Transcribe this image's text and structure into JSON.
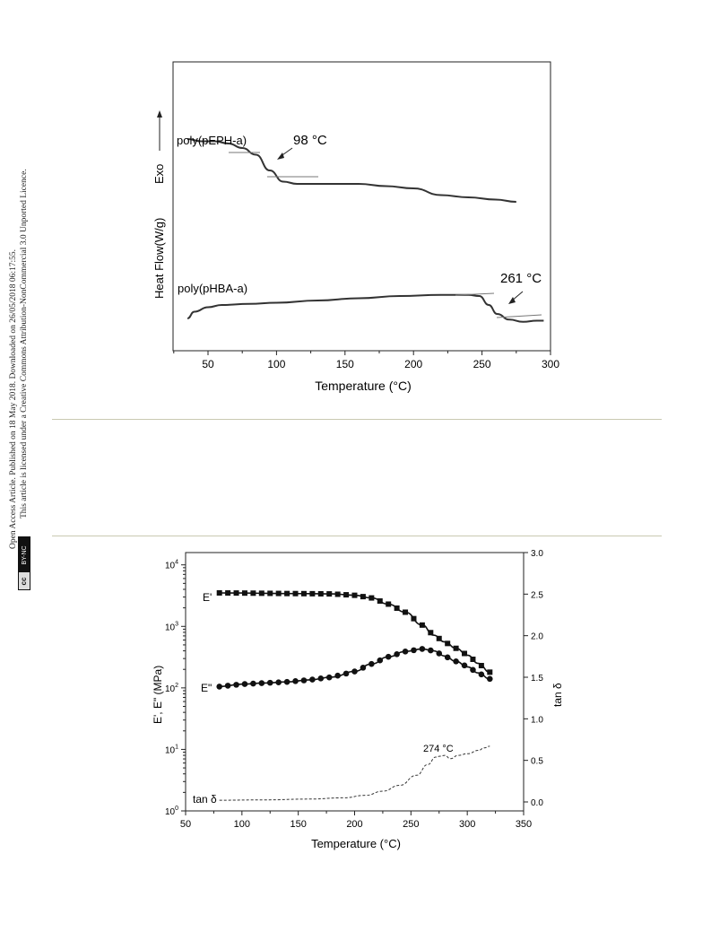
{
  "sidebar": {
    "line1": "Open Access Article. Published on 18 May 2018. Downloaded on 26/05/2018 06:17:55.",
    "line2": "This article is licensed under a Creative Commons Attribution-NonCommercial 3.0 Unported Licence.",
    "badge_cc": "cc",
    "badge_text": "BY-NC"
  },
  "figure_top": {
    "xlabel": "Temperature (°C)",
    "ylabel": "Heat Flow(W/g)",
    "exo_label": "Exo",
    "curve1_label": "poly(pEPH-a)",
    "curve2_label": "poly(pHBA-a)",
    "annotation1": "98 °C",
    "annotation2": "261 °C",
    "xticks": [
      "50",
      "100",
      "150",
      "200",
      "250",
      "300"
    ]
  },
  "figure_bottom": {
    "xlabel": "Temperature (°C)",
    "ylabel_left": "E', E\" (MPa)",
    "ylabel_right": "tan δ",
    "label_E1": "E'",
    "label_E2": "E\"",
    "label_tan": "tan δ",
    "annotation": "274 °C",
    "xticks": [
      "50",
      "100",
      "150",
      "200",
      "250",
      "300",
      "350"
    ],
    "yticks_left": [
      "10^0",
      "10^1",
      "10^2",
      "10^3",
      "10^4"
    ],
    "yticks_right": [
      "0.0",
      "0.5",
      "1.0",
      "1.5",
      "2.0",
      "2.5",
      "3.0"
    ]
  },
  "chart_data": [
    {
      "type": "line",
      "xlabel": "Temperature (°C)",
      "ylabel": "Heat Flow(W/g)",
      "xlim": [
        25,
        300
      ],
      "series": [
        {
          "name": "poly(pEPH-a)",
          "x": [
            35,
            45,
            55,
            65,
            75,
            85,
            95,
            105,
            115,
            125,
            140,
            160,
            180,
            200,
            220,
            240,
            260,
            275
          ],
          "y": [
            0.9,
            0.89,
            0.89,
            0.88,
            0.86,
            0.83,
            0.76,
            0.71,
            0.7,
            0.7,
            0.7,
            0.7,
            0.69,
            0.68,
            0.65,
            0.64,
            0.63,
            0.62
          ]
        },
        {
          "name": "poly(pHBA-a)",
          "x": [
            35,
            40,
            50,
            60,
            80,
            100,
            130,
            160,
            190,
            220,
            240,
            248,
            255,
            261,
            270,
            280,
            290,
            295
          ],
          "y": [
            0.1,
            0.13,
            0.15,
            0.16,
            0.165,
            0.17,
            0.18,
            0.19,
            0.2,
            0.205,
            0.205,
            0.2,
            0.16,
            0.12,
            0.095,
            0.085,
            0.09,
            0.09
          ]
        }
      ]
    },
    {
      "type": "line",
      "xlabel": "Temperature (°C)",
      "ylabel": "E', E\" (MPa)",
      "y2label": "tan δ",
      "xlim": [
        50,
        350
      ],
      "ylim_log": [
        0,
        4
      ],
      "y2lim": [
        -0.1,
        3.0
      ],
      "series": [
        {
          "name": "E'",
          "axis": "left",
          "x": [
            80,
            100,
            120,
            140,
            160,
            180,
            200,
            215,
            230,
            245,
            260,
            270,
            280,
            290,
            300,
            310,
            320
          ],
          "y": [
            3500,
            3480,
            3450,
            3420,
            3400,
            3370,
            3200,
            2900,
            2300,
            1700,
            1050,
            720,
            560,
            440,
            340,
            250,
            180
          ]
        },
        {
          "name": "E\"",
          "axis": "left",
          "x": [
            80,
            100,
            120,
            140,
            160,
            180,
            200,
            215,
            230,
            245,
            260,
            270,
            280,
            290,
            300,
            310,
            320
          ],
          "y": [
            105,
            115,
            120,
            125,
            135,
            150,
            185,
            245,
            320,
            390,
            430,
            400,
            330,
            270,
            220,
            175,
            140
          ]
        },
        {
          "name": "tan δ",
          "axis": "right",
          "x": [
            80,
            120,
            160,
            190,
            210,
            225,
            240,
            255,
            265,
            272,
            276,
            280,
            285,
            292,
            300,
            310,
            315,
            320
          ],
          "y": [
            0.02,
            0.025,
            0.035,
            0.05,
            0.08,
            0.13,
            0.2,
            0.32,
            0.45,
            0.54,
            0.55,
            0.56,
            0.52,
            0.56,
            0.58,
            0.62,
            0.65,
            0.67
          ]
        }
      ]
    }
  ]
}
